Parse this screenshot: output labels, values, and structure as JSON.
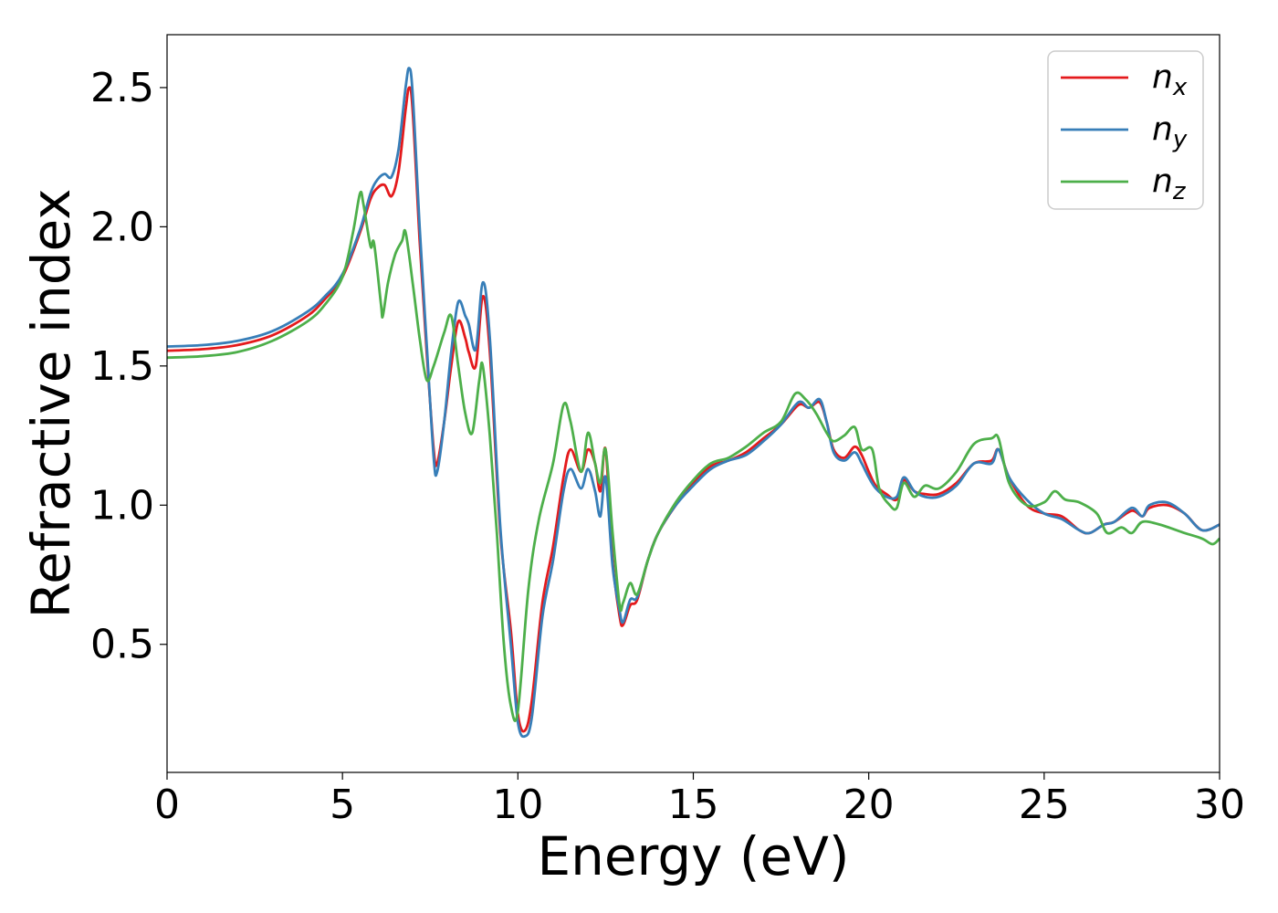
{
  "chart_data": {
    "type": "line",
    "xlabel": "Energy (eV)",
    "ylabel": "Refractive index",
    "xlim": [
      0,
      30
    ],
    "ylim": [
      0.04,
      2.69
    ],
    "xticks": [
      0,
      5,
      10,
      15,
      20,
      25,
      30
    ],
    "yticks": [
      0.5,
      1.0,
      1.5,
      2.0,
      2.5
    ],
    "xtick_labels": [
      "0",
      "5",
      "10",
      "15",
      "20",
      "25",
      "30"
    ],
    "ytick_labels": [
      "0.5",
      "1.0",
      "1.5",
      "2.0",
      "2.5"
    ],
    "grid": false,
    "legend_position": "top-right",
    "series": [
      {
        "name": "n_x",
        "label_base": "n",
        "label_sub": "x",
        "color": "#e41a1c",
        "points": [
          [
            0,
            1.555
          ],
          [
            1,
            1.56
          ],
          [
            2,
            1.575
          ],
          [
            3,
            1.61
          ],
          [
            4,
            1.68
          ],
          [
            4.5,
            1.74
          ],
          [
            5,
            1.82
          ],
          [
            5.5,
            1.98
          ],
          [
            5.8,
            2.1
          ],
          [
            6,
            2.14
          ],
          [
            6.2,
            2.15
          ],
          [
            6.4,
            2.11
          ],
          [
            6.6,
            2.2
          ],
          [
            6.8,
            2.42
          ],
          [
            6.9,
            2.5
          ],
          [
            7,
            2.42
          ],
          [
            7.2,
            1.95
          ],
          [
            7.4,
            1.55
          ],
          [
            7.6,
            1.2
          ],
          [
            7.7,
            1.15
          ],
          [
            7.9,
            1.3
          ],
          [
            8.1,
            1.5
          ],
          [
            8.3,
            1.66
          ],
          [
            8.5,
            1.6
          ],
          [
            8.6,
            1.55
          ],
          [
            8.8,
            1.5
          ],
          [
            9,
            1.75
          ],
          [
            9.2,
            1.55
          ],
          [
            9.5,
            0.9
          ],
          [
            9.8,
            0.55
          ],
          [
            10,
            0.25
          ],
          [
            10.2,
            0.19
          ],
          [
            10.4,
            0.3
          ],
          [
            10.7,
            0.65
          ],
          [
            11,
            0.85
          ],
          [
            11.3,
            1.1
          ],
          [
            11.5,
            1.2
          ],
          [
            11.8,
            1.12
          ],
          [
            12,
            1.2
          ],
          [
            12.2,
            1.15
          ],
          [
            12.35,
            1.05
          ],
          [
            12.5,
            1.2
          ],
          [
            12.7,
            0.8
          ],
          [
            12.9,
            0.6
          ],
          [
            13,
            0.57
          ],
          [
            13.2,
            0.64
          ],
          [
            13.4,
            0.66
          ],
          [
            13.7,
            0.8
          ],
          [
            14,
            0.9
          ],
          [
            14.5,
            1.0
          ],
          [
            15,
            1.08
          ],
          [
            15.5,
            1.14
          ],
          [
            16,
            1.16
          ],
          [
            16.5,
            1.19
          ],
          [
            17,
            1.24
          ],
          [
            17.5,
            1.29
          ],
          [
            18,
            1.36
          ],
          [
            18.3,
            1.35
          ],
          [
            18.6,
            1.37
          ],
          [
            18.8,
            1.3
          ],
          [
            19,
            1.2
          ],
          [
            19.3,
            1.17
          ],
          [
            19.6,
            1.21
          ],
          [
            19.8,
            1.18
          ],
          [
            20,
            1.12
          ],
          [
            20.2,
            1.07
          ],
          [
            20.5,
            1.04
          ],
          [
            20.8,
            1.02
          ],
          [
            21,
            1.09
          ],
          [
            21.3,
            1.05
          ],
          [
            21.6,
            1.04
          ],
          [
            22,
            1.04
          ],
          [
            22.5,
            1.08
          ],
          [
            23,
            1.15
          ],
          [
            23.5,
            1.16
          ],
          [
            23.7,
            1.2
          ],
          [
            24,
            1.1
          ],
          [
            24.5,
            1.0
          ],
          [
            25,
            0.97
          ],
          [
            25.5,
            0.96
          ],
          [
            26,
            0.91
          ],
          [
            26.3,
            0.9
          ],
          [
            26.7,
            0.93
          ],
          [
            27,
            0.94
          ],
          [
            27.5,
            0.98
          ],
          [
            27.8,
            0.96
          ],
          [
            28,
            0.99
          ],
          [
            28.5,
            1.0
          ],
          [
            29,
            0.97
          ],
          [
            29.5,
            0.91
          ],
          [
            30,
            0.93
          ]
        ]
      },
      {
        "name": "n_y",
        "label_base": "n",
        "label_sub": "y",
        "color": "#377eb8",
        "points": [
          [
            0,
            1.57
          ],
          [
            1,
            1.575
          ],
          [
            2,
            1.59
          ],
          [
            3,
            1.625
          ],
          [
            4,
            1.695
          ],
          [
            4.5,
            1.75
          ],
          [
            5,
            1.83
          ],
          [
            5.5,
            1.99
          ],
          [
            5.8,
            2.12
          ],
          [
            6,
            2.17
          ],
          [
            6.2,
            2.19
          ],
          [
            6.4,
            2.18
          ],
          [
            6.6,
            2.28
          ],
          [
            6.8,
            2.5
          ],
          [
            6.9,
            2.57
          ],
          [
            7,
            2.48
          ],
          [
            7.2,
            2.0
          ],
          [
            7.4,
            1.58
          ],
          [
            7.6,
            1.17
          ],
          [
            7.7,
            1.12
          ],
          [
            7.9,
            1.3
          ],
          [
            8.1,
            1.55
          ],
          [
            8.3,
            1.73
          ],
          [
            8.5,
            1.68
          ],
          [
            8.6,
            1.65
          ],
          [
            8.8,
            1.56
          ],
          [
            9,
            1.8
          ],
          [
            9.2,
            1.6
          ],
          [
            9.5,
            0.92
          ],
          [
            9.8,
            0.5
          ],
          [
            10,
            0.22
          ],
          [
            10.2,
            0.17
          ],
          [
            10.4,
            0.24
          ],
          [
            10.7,
            0.6
          ],
          [
            11,
            0.8
          ],
          [
            11.3,
            1.05
          ],
          [
            11.5,
            1.13
          ],
          [
            11.8,
            1.06
          ],
          [
            12,
            1.13
          ],
          [
            12.2,
            1.05
          ],
          [
            12.35,
            0.96
          ],
          [
            12.5,
            1.1
          ],
          [
            12.7,
            0.78
          ],
          [
            12.9,
            0.62
          ],
          [
            13,
            0.58
          ],
          [
            13.2,
            0.66
          ],
          [
            13.4,
            0.67
          ],
          [
            13.7,
            0.8
          ],
          [
            14,
            0.9
          ],
          [
            14.5,
            1.0
          ],
          [
            15,
            1.07
          ],
          [
            15.5,
            1.13
          ],
          [
            16,
            1.16
          ],
          [
            16.5,
            1.18
          ],
          [
            17,
            1.23
          ],
          [
            17.5,
            1.29
          ],
          [
            18,
            1.37
          ],
          [
            18.3,
            1.35
          ],
          [
            18.6,
            1.38
          ],
          [
            18.8,
            1.3
          ],
          [
            19,
            1.19
          ],
          [
            19.3,
            1.16
          ],
          [
            19.6,
            1.19
          ],
          [
            19.8,
            1.15
          ],
          [
            20,
            1.1
          ],
          [
            20.2,
            1.06
          ],
          [
            20.5,
            1.03
          ],
          [
            20.8,
            1.03
          ],
          [
            21,
            1.1
          ],
          [
            21.3,
            1.05
          ],
          [
            21.6,
            1.03
          ],
          [
            22,
            1.03
          ],
          [
            22.5,
            1.07
          ],
          [
            23,
            1.15
          ],
          [
            23.5,
            1.15
          ],
          [
            23.7,
            1.2
          ],
          [
            24,
            1.1
          ],
          [
            24.5,
            1.02
          ],
          [
            25,
            0.97
          ],
          [
            25.5,
            0.95
          ],
          [
            26,
            0.91
          ],
          [
            26.3,
            0.9
          ],
          [
            26.7,
            0.93
          ],
          [
            27,
            0.94
          ],
          [
            27.5,
            0.99
          ],
          [
            27.8,
            0.96
          ],
          [
            28,
            1.0
          ],
          [
            28.5,
            1.01
          ],
          [
            29,
            0.97
          ],
          [
            29.5,
            0.91
          ],
          [
            30,
            0.93
          ]
        ]
      },
      {
        "name": "n_z",
        "label_base": "n",
        "label_sub": "z",
        "color": "#4daf4a",
        "points": [
          [
            0,
            1.53
          ],
          [
            1,
            1.535
          ],
          [
            2,
            1.55
          ],
          [
            3,
            1.59
          ],
          [
            4,
            1.66
          ],
          [
            4.5,
            1.72
          ],
          [
            5,
            1.82
          ],
          [
            5.3,
            1.98
          ],
          [
            5.5,
            2.12
          ],
          [
            5.6,
            2.08
          ],
          [
            5.8,
            1.93
          ],
          [
            5.9,
            1.94
          ],
          [
            6.1,
            1.72
          ],
          [
            6.15,
            1.68
          ],
          [
            6.3,
            1.8
          ],
          [
            6.5,
            1.9
          ],
          [
            6.7,
            1.95
          ],
          [
            6.8,
            1.98
          ],
          [
            7,
            1.8
          ],
          [
            7.2,
            1.6
          ],
          [
            7.4,
            1.45
          ],
          [
            7.6,
            1.5
          ],
          [
            7.9,
            1.62
          ],
          [
            8.1,
            1.68
          ],
          [
            8.3,
            1.5
          ],
          [
            8.5,
            1.33
          ],
          [
            8.7,
            1.26
          ],
          [
            8.9,
            1.45
          ],
          [
            9,
            1.5
          ],
          [
            9.2,
            1.25
          ],
          [
            9.4,
            0.9
          ],
          [
            9.6,
            0.5
          ],
          [
            9.8,
            0.28
          ],
          [
            10,
            0.26
          ],
          [
            10.3,
            0.7
          ],
          [
            10.6,
            0.95
          ],
          [
            11,
            1.15
          ],
          [
            11.3,
            1.36
          ],
          [
            11.5,
            1.3
          ],
          [
            11.8,
            1.12
          ],
          [
            12,
            1.26
          ],
          [
            12.2,
            1.15
          ],
          [
            12.35,
            1.08
          ],
          [
            12.5,
            1.2
          ],
          [
            12.7,
            0.9
          ],
          [
            12.9,
            0.64
          ],
          [
            13,
            0.65
          ],
          [
            13.2,
            0.72
          ],
          [
            13.4,
            0.68
          ],
          [
            13.7,
            0.8
          ],
          [
            14,
            0.9
          ],
          [
            14.5,
            1.01
          ],
          [
            15,
            1.09
          ],
          [
            15.5,
            1.15
          ],
          [
            16,
            1.17
          ],
          [
            16.5,
            1.21
          ],
          [
            17,
            1.26
          ],
          [
            17.5,
            1.3
          ],
          [
            17.9,
            1.4
          ],
          [
            18.2,
            1.38
          ],
          [
            18.5,
            1.33
          ],
          [
            18.8,
            1.26
          ],
          [
            19,
            1.23
          ],
          [
            19.3,
            1.25
          ],
          [
            19.6,
            1.28
          ],
          [
            19.8,
            1.2
          ],
          [
            20.1,
            1.2
          ],
          [
            20.3,
            1.06
          ],
          [
            20.6,
            1.0
          ],
          [
            20.8,
            0.99
          ],
          [
            21,
            1.08
          ],
          [
            21.3,
            1.03
          ],
          [
            21.6,
            1.07
          ],
          [
            22,
            1.06
          ],
          [
            22.5,
            1.12
          ],
          [
            23,
            1.22
          ],
          [
            23.5,
            1.24
          ],
          [
            23.7,
            1.24
          ],
          [
            24,
            1.08
          ],
          [
            24.5,
            1.0
          ],
          [
            25,
            1.01
          ],
          [
            25.3,
            1.05
          ],
          [
            25.6,
            1.02
          ],
          [
            26,
            1.01
          ],
          [
            26.5,
            0.97
          ],
          [
            26.8,
            0.9
          ],
          [
            27.2,
            0.92
          ],
          [
            27.5,
            0.9
          ],
          [
            27.8,
            0.94
          ],
          [
            28.3,
            0.93
          ],
          [
            29,
            0.9
          ],
          [
            29.5,
            0.88
          ],
          [
            29.8,
            0.86
          ],
          [
            30,
            0.88
          ]
        ]
      }
    ]
  }
}
